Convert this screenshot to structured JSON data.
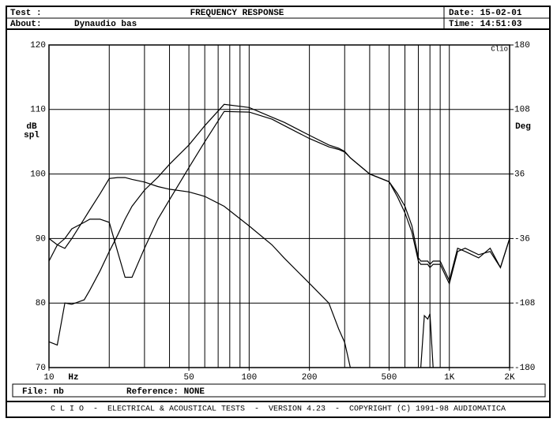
{
  "header": {
    "test_label": "Test :",
    "about_label": "About:",
    "about": "Dynaudio bas",
    "date": "Date: 15-02-01",
    "time": "Time: 14:51:03"
  },
  "chart_data": {
    "type": "line",
    "title": "FREQUENCY RESPONSE",
    "ylabel": [
      "dB",
      "spl"
    ],
    "y2label": "Deg",
    "xlabel": "Hz",
    "corner_label": "Clio",
    "xscale": "log",
    "grid": true,
    "x": [
      10,
      11,
      12,
      13,
      15,
      16,
      18,
      20,
      22,
      24,
      26,
      30,
      35,
      40,
      50,
      60,
      75,
      100,
      130,
      150,
      200,
      250,
      280,
      300,
      320,
      400,
      500,
      550,
      600,
      650,
      700,
      720,
      750,
      780,
      800,
      830,
      900,
      1000,
      1100,
      1200,
      1400,
      1600,
      1800,
      2000
    ],
    "xlim": [
      10,
      2000
    ],
    "xticks": [
      10,
      50,
      100,
      200,
      500,
      {
        "value": 1000,
        "label": "1K"
      },
      {
        "value": 2000,
        "label": "2K"
      }
    ],
    "xgrid": [
      20,
      30,
      40,
      50,
      60,
      70,
      80,
      90,
      100,
      200,
      300,
      400,
      500,
      600,
      700,
      800,
      900,
      1000
    ],
    "ylim": [
      70,
      120
    ],
    "yticks": [
      70,
      80,
      90,
      100,
      110,
      120
    ],
    "y2lim": [
      -180,
      180
    ],
    "y2ticks": [
      -180,
      -108,
      -36,
      36,
      108,
      180
    ],
    "series": [
      {
        "color": "#000000",
        "values": [
          74,
          73.5,
          80,
          79.8,
          80.5,
          82,
          85,
          88,
          90.5,
          93,
          95,
          97.5,
          99.5,
          101.5,
          104.5,
          107.5,
          110.8,
          110.3,
          108.8,
          108,
          106,
          104.5,
          104,
          103.5,
          102.5,
          100,
          98.8,
          97,
          95,
          92,
          87,
          86.5,
          86.5,
          86.5,
          86,
          86.5,
          86.5,
          83.5,
          88.5,
          88,
          87,
          88.5,
          85.5,
          90
        ]
      },
      {
        "color": "#000000",
        "values": [
          86.5,
          89,
          90,
          91.5,
          92.5,
          93,
          93,
          92.5,
          88,
          84,
          84,
          88.5,
          93,
          96,
          101,
          105,
          109.7,
          109.6,
          108.5,
          107.5,
          105.5,
          104.2,
          103.8,
          103.4,
          102.5,
          100,
          98.8,
          96.5,
          94,
          91,
          86.5,
          86,
          86,
          86,
          85.5,
          86,
          86,
          83,
          88,
          88.5,
          87.5,
          88,
          85.5,
          90
        ]
      },
      {
        "color": "#000000",
        "axis": "y2",
        "values": [
          -36,
          -43,
          -47,
          -36,
          -14,
          -4,
          14,
          31,
          32,
          32,
          30,
          27,
          22,
          19,
          16,
          11,
          0,
          -22,
          -43,
          -58,
          -86,
          -108,
          -137,
          -152,
          -180,
          null,
          null,
          null,
          null,
          null,
          null,
          -180,
          -122,
          -126,
          -120,
          -180,
          null,
          null,
          null,
          null,
          null,
          null,
          null,
          null
        ]
      }
    ]
  },
  "footer": {
    "file": "File: nb",
    "reference": "Reference: NONE",
    "banner": "C L I O  -  ELECTRICAL & ACOUSTICAL TESTS  -  VERSION 4.23  -  COPYRIGHT (C) 1991-98 AUDIOMATICA"
  }
}
